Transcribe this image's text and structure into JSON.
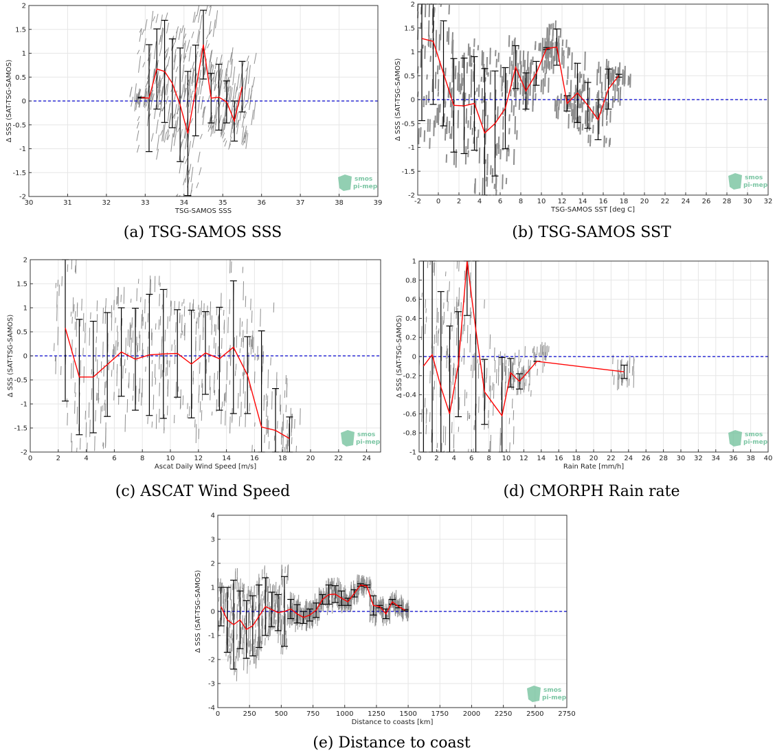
{
  "logo": {
    "line1": "smos",
    "line2": "pi-mep",
    "color": "#6dbf98"
  },
  "colors": {
    "mean_line": "#ff0000",
    "errorbar": "#000000",
    "zero_line": "#0000cc",
    "scatter": "#7a7a7a",
    "grid": "#e6e6e6"
  },
  "chart_data": [
    {
      "id": "a",
      "type": "line",
      "caption": "(a) TSG-SAMOS SSS",
      "xlabel": "TSG-SAMOS SSS",
      "ylabel": "Δ SSS (SAT-TSG-SAMOS)",
      "xlim": [
        30,
        39
      ],
      "ylim": [
        -2,
        2
      ],
      "xticks": [
        30,
        31,
        32,
        33,
        34,
        35,
        36,
        37,
        38,
        39
      ],
      "yticks": [
        -2,
        -1.5,
        -1,
        -0.5,
        0,
        0.5,
        1,
        1.5,
        2
      ],
      "grid": true,
      "reference_line_y": 0,
      "series": [
        {
          "x": [
            32.9,
            33.1,
            33.3,
            33.5,
            33.7,
            33.9,
            34.1,
            34.3,
            34.5,
            34.7,
            34.9,
            35.1,
            35.3,
            35.5
          ],
          "mean": [
            0.07,
            0.06,
            0.67,
            0.62,
            0.37,
            -0.08,
            -0.68,
            0.22,
            1.18,
            0.06,
            0.08,
            -0.02,
            -0.42,
            0.3
          ],
          "std": [
            0.01,
            1.12,
            0.84,
            1.07,
            0.93,
            1.19,
            1.3,
            0.95,
            0.72,
            0.52,
            0.69,
            0.44,
            0.42,
            0.53
          ]
        }
      ]
    },
    {
      "id": "b",
      "type": "line",
      "caption": "(b) TSG-SAMOS SST",
      "xlabel": "TSG-SAMOS SST [deg C]",
      "ylabel": "Δ SSS (SAT-TSG-SAMOS)",
      "xlim": [
        -2,
        32
      ],
      "ylim": [
        -2,
        2
      ],
      "xticks": [
        -2,
        0,
        2,
        4,
        6,
        8,
        10,
        12,
        14,
        16,
        18,
        20,
        22,
        24,
        26,
        28,
        30,
        32
      ],
      "yticks": [
        -2,
        -1.5,
        -1,
        -0.5,
        0,
        0.5,
        1,
        1.5,
        2
      ],
      "grid": true,
      "reference_line_y": 0,
      "series": [
        {
          "x": [
            -1.6,
            -0.5,
            0.5,
            1.5,
            2.5,
            3.5,
            4.5,
            5.5,
            6.5,
            7.5,
            8.5,
            9.5,
            10.5,
            11.5,
            12.5,
            13.5,
            14.5,
            15.5,
            16.5,
            17.5
          ],
          "mean": [
            1.28,
            1.22,
            0.55,
            -0.12,
            -0.13,
            -0.08,
            -0.7,
            -0.5,
            -0.18,
            0.68,
            0.18,
            0.55,
            1.07,
            1.1,
            -0.08,
            0.14,
            -0.12,
            -0.42,
            0.22,
            0.5
          ],
          "std": [
            1.72,
            1.32,
            1.1,
            0.98,
            1.0,
            0.98,
            1.35,
            1.1,
            0.85,
            0.45,
            0.38,
            0.25,
            0.02,
            0.38,
            0.16,
            0.62,
            0.48,
            0.42,
            0.42,
            0.03
          ]
        }
      ]
    },
    {
      "id": "c",
      "type": "line",
      "caption": "(c) ASCAT Wind Speed",
      "xlabel": "Ascat Daily Wind Speed [m/s]",
      "ylabel": "Δ SSS (SAT-TSG-SAMOS)",
      "xlim": [
        0,
        25
      ],
      "ylim": [
        -2,
        2
      ],
      "xticks": [
        0,
        2,
        4,
        6,
        8,
        10,
        12,
        14,
        16,
        18,
        20,
        22,
        24
      ],
      "yticks": [
        -2,
        -1.5,
        -1,
        -0.5,
        0,
        0.5,
        1,
        1.5,
        2
      ],
      "grid": true,
      "reference_line_y": 0,
      "series": [
        {
          "x": [
            2.5,
            3.5,
            4.5,
            5.5,
            6.5,
            7.5,
            8.5,
            9.5,
            10.5,
            11.5,
            12.5,
            13.5,
            14.5,
            15.5,
            16.5,
            17.5,
            18.5
          ],
          "mean": [
            0.58,
            -0.44,
            -0.44,
            -0.18,
            0.08,
            -0.07,
            0.02,
            0.04,
            0.05,
            -0.17,
            0.06,
            -0.06,
            0.18,
            -0.4,
            -1.48,
            -1.55,
            -1.72
          ],
          "std": [
            1.52,
            1.2,
            1.16,
            1.08,
            0.92,
            1.06,
            1.26,
            1.34,
            0.91,
            1.12,
            0.86,
            1.07,
            1.38,
            0.8,
            2.0,
            0.87,
            0.45
          ]
        }
      ]
    },
    {
      "id": "d",
      "type": "line",
      "caption": "(d) CMORPH Rain rate",
      "xlabel": "Rain Rate [mm/h]",
      "ylabel": "Δ SSS (SAT-TSG-SAMOS)",
      "xlim": [
        0,
        40
      ],
      "ylim": [
        -1,
        1
      ],
      "xticks": [
        0,
        2,
        4,
        6,
        8,
        10,
        12,
        14,
        16,
        18,
        20,
        22,
        24,
        26,
        28,
        30,
        32,
        34,
        36,
        38,
        40
      ],
      "yticks": [
        -1,
        -0.8,
        -0.6,
        -0.4,
        -0.2,
        0,
        0.2,
        0.4,
        0.6,
        0.8,
        1
      ],
      "grid": true,
      "reference_line_y": 0,
      "series": [
        {
          "x": [
            0.5,
            1.5,
            2.5,
            3.5,
            4.5,
            5.5,
            6.5,
            7.5,
            9.5,
            10.5,
            11.5,
            13.5,
            23.5
          ],
          "mean": [
            -0.1,
            0.02,
            -0.32,
            -0.6,
            -0.08,
            1.05,
            0.28,
            -0.37,
            -0.62,
            -0.17,
            -0.26,
            -0.05,
            -0.16
          ],
          "std": [
            1.4,
            1.4,
            1.0,
            0.92,
            0.55,
            0.62,
            1.5,
            0.34,
            0.61,
            0.15,
            0.08,
            0.0,
            0.07
          ]
        }
      ]
    },
    {
      "id": "e",
      "type": "line",
      "caption": "(e) Distance to coast",
      "xlabel": "Distance to coasts [km]",
      "ylabel": "Δ SSS (SAT-TSG-SAMOS)",
      "xlim": [
        0,
        2750
      ],
      "ylim": [
        -4,
        4
      ],
      "xticks": [
        0,
        250,
        500,
        750,
        1000,
        1250,
        1500,
        1750,
        2000,
        2250,
        2500,
        2750
      ],
      "yticks": [
        -4,
        -3,
        -2,
        -1,
        0,
        1,
        2,
        3,
        4
      ],
      "grid": true,
      "reference_line_y": 0,
      "series": [
        {
          "x": [
            25,
            75,
            125,
            175,
            225,
            275,
            325,
            375,
            425,
            475,
            525,
            575,
            625,
            675,
            725,
            775,
            825,
            875,
            925,
            975,
            1025,
            1075,
            1125,
            1175,
            1225,
            1275,
            1325,
            1375,
            1425,
            1475
          ],
          "mean": [
            0.2,
            -0.35,
            -0.55,
            -0.35,
            -0.75,
            -0.6,
            -0.2,
            0.2,
            0.08,
            -0.05,
            0.0,
            0.1,
            -0.1,
            -0.25,
            -0.15,
            0.05,
            0.5,
            0.7,
            0.72,
            0.55,
            0.4,
            0.75,
            1.1,
            1.05,
            0.25,
            0.2,
            -0.1,
            0.4,
            0.2,
            0.05
          ],
          "std": [
            0.8,
            1.35,
            1.85,
            1.2,
            1.2,
            1.25,
            1.3,
            1.2,
            0.72,
            0.75,
            1.45,
            0.4,
            0.38,
            0.25,
            0.25,
            0.3,
            0.2,
            0.4,
            0.35,
            0.3,
            0.15,
            0.15,
            0.05,
            0.05,
            0.4,
            0.05,
            0.2,
            0.1,
            0.05,
            0.03
          ]
        }
      ]
    }
  ]
}
